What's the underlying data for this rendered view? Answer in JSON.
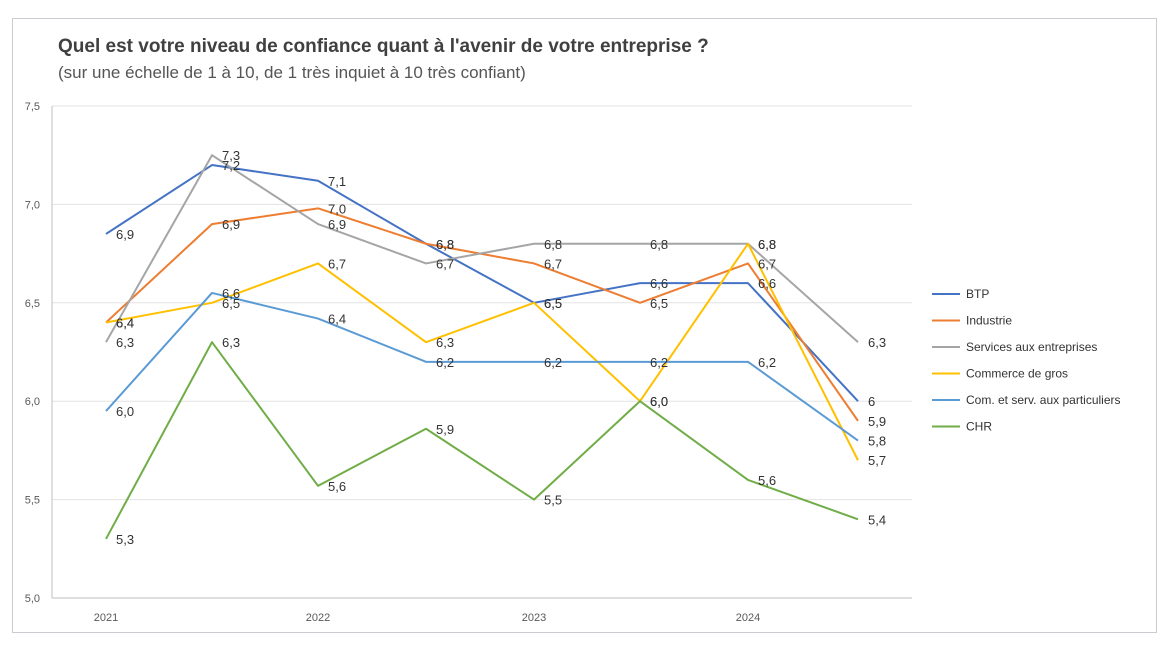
{
  "chart_data": {
    "type": "line",
    "title": "Quel est votre niveau de confiance quant à l'avenir de votre entreprise ?",
    "subtitle": "(sur une échelle de 1 à 10, de 1 très inquiet à 10 très confiant)",
    "x": [
      0,
      1,
      2,
      3,
      4,
      5,
      6,
      7
    ],
    "x_tick_labels": [
      {
        "x": 0,
        "label": "2021"
      },
      {
        "x": 2,
        "label": "2022"
      },
      {
        "x": 4,
        "label": "2023"
      },
      {
        "x": 6,
        "label": "2024"
      }
    ],
    "ylim": [
      5.0,
      7.5
    ],
    "y_ticks": [
      5.0,
      5.5,
      6.0,
      6.5,
      7.0,
      7.5
    ],
    "y_tick_labels": [
      "5,0",
      "5,5",
      "6,0",
      "6,5",
      "7,0",
      "7,5"
    ],
    "grid": true,
    "legend_position": "right",
    "series": [
      {
        "name": "BTP",
        "color": "#4472C4",
        "values": [
          6.85,
          7.2,
          7.12,
          6.8,
          6.5,
          6.6,
          6.6,
          6.0
        ],
        "labels": [
          "6,9",
          "7,2",
          "7,1",
          "6,8",
          "6,5",
          "6,6",
          "6,6",
          "6"
        ]
      },
      {
        "name": "Industrie",
        "color": "#ED7D31",
        "values": [
          6.4,
          6.9,
          6.98,
          6.8,
          6.7,
          6.5,
          6.7,
          5.9
        ],
        "labels": [
          "6,4",
          "6,9",
          "7,0",
          "6,8",
          "6,7",
          "6,5",
          "6,7",
          "5,9"
        ]
      },
      {
        "name": "Services aux entreprises",
        "color": "#A5A5A5",
        "values": [
          6.3,
          7.25,
          6.9,
          6.7,
          6.8,
          6.8,
          6.8,
          6.3
        ],
        "labels": [
          "6,3",
          "7,3",
          "6,9",
          "6,7",
          "6,8",
          "6,8",
          "6,8",
          "6,3"
        ]
      },
      {
        "name": "Commerce de gros",
        "color": "#FFC000",
        "values": [
          6.4,
          6.5,
          6.7,
          6.3,
          6.5,
          6.0,
          6.8,
          5.7
        ],
        "labels": [
          "6,4",
          "6,5",
          "6,7",
          "6,3",
          "6,5",
          "6,0",
          "6,8",
          "5,7"
        ]
      },
      {
        "name": "Com. et serv. aux particuliers",
        "color": "#5B9BD5",
        "values": [
          5.95,
          6.55,
          6.42,
          6.2,
          6.2,
          6.2,
          6.2,
          5.8
        ],
        "labels": [
          "6,0",
          "6,6",
          "6,4",
          "6,2",
          "6,2",
          "6,2",
          "6,2",
          "5,8"
        ]
      },
      {
        "name": "CHR",
        "color": "#70AD47",
        "values": [
          5.3,
          6.3,
          5.57,
          5.86,
          5.5,
          6.0,
          5.6,
          5.4
        ],
        "labels": [
          "5,3",
          "6,3",
          "5,6",
          "5,9",
          "5,5",
          "6,0",
          "5,6",
          "5,4"
        ]
      }
    ]
  }
}
